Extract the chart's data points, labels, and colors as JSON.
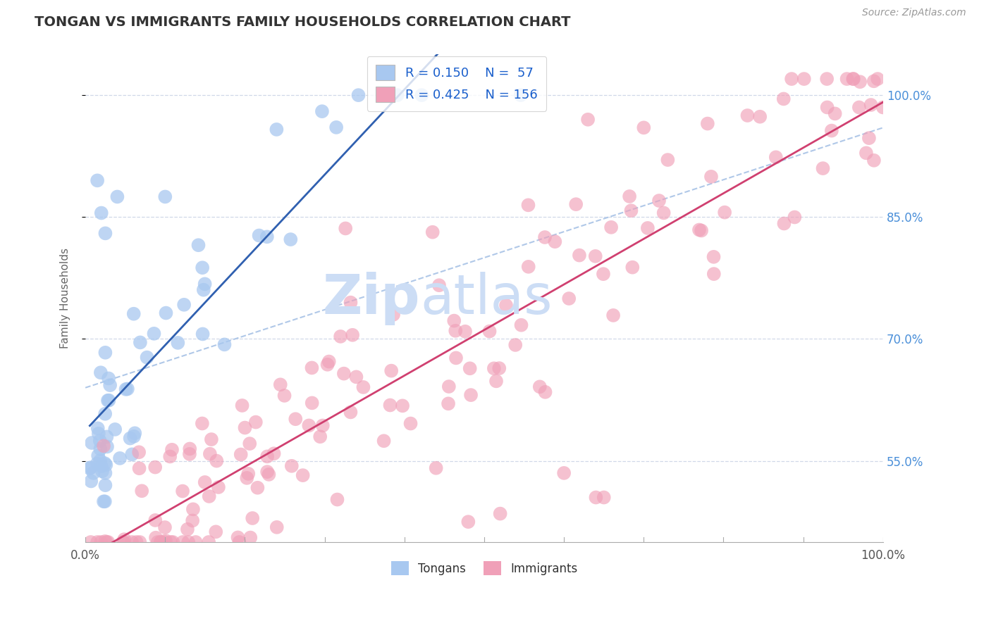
{
  "title": "TONGAN VS IMMIGRANTS FAMILY HOUSEHOLDS CORRELATION CHART",
  "source_text": "Source: ZipAtlas.com",
  "ylabel": "Family Households",
  "xlim": [
    0.0,
    1.0
  ],
  "ylim": [
    0.45,
    1.05
  ],
  "xtick_vals": [
    0.0,
    1.0
  ],
  "xticklabels": [
    "0.0%",
    "100.0%"
  ],
  "ytick_vals": [
    0.55,
    0.7,
    0.85,
    1.0
  ],
  "yticklabels_right": [
    "55.0%",
    "70.0%",
    "85.0%",
    "100.0%"
  ],
  "tongans_color": "#A8C8F0",
  "immigrants_color": "#F0A0B8",
  "tongans_line_color": "#3060B0",
  "immigrants_line_color": "#D04070",
  "diag_color": "#B0C8E8",
  "legend_text_color": "#1a5fcc",
  "background_color": "#ffffff",
  "grid_color": "#d0d8e8",
  "title_color": "#333333",
  "source_color": "#999999",
  "watermark_color": "#ccddf5",
  "watermark_text": "ZipAtlas",
  "R_tongans": 0.15,
  "N_tongans": 57,
  "R_immigrants": 0.425,
  "N_immigrants": 156
}
